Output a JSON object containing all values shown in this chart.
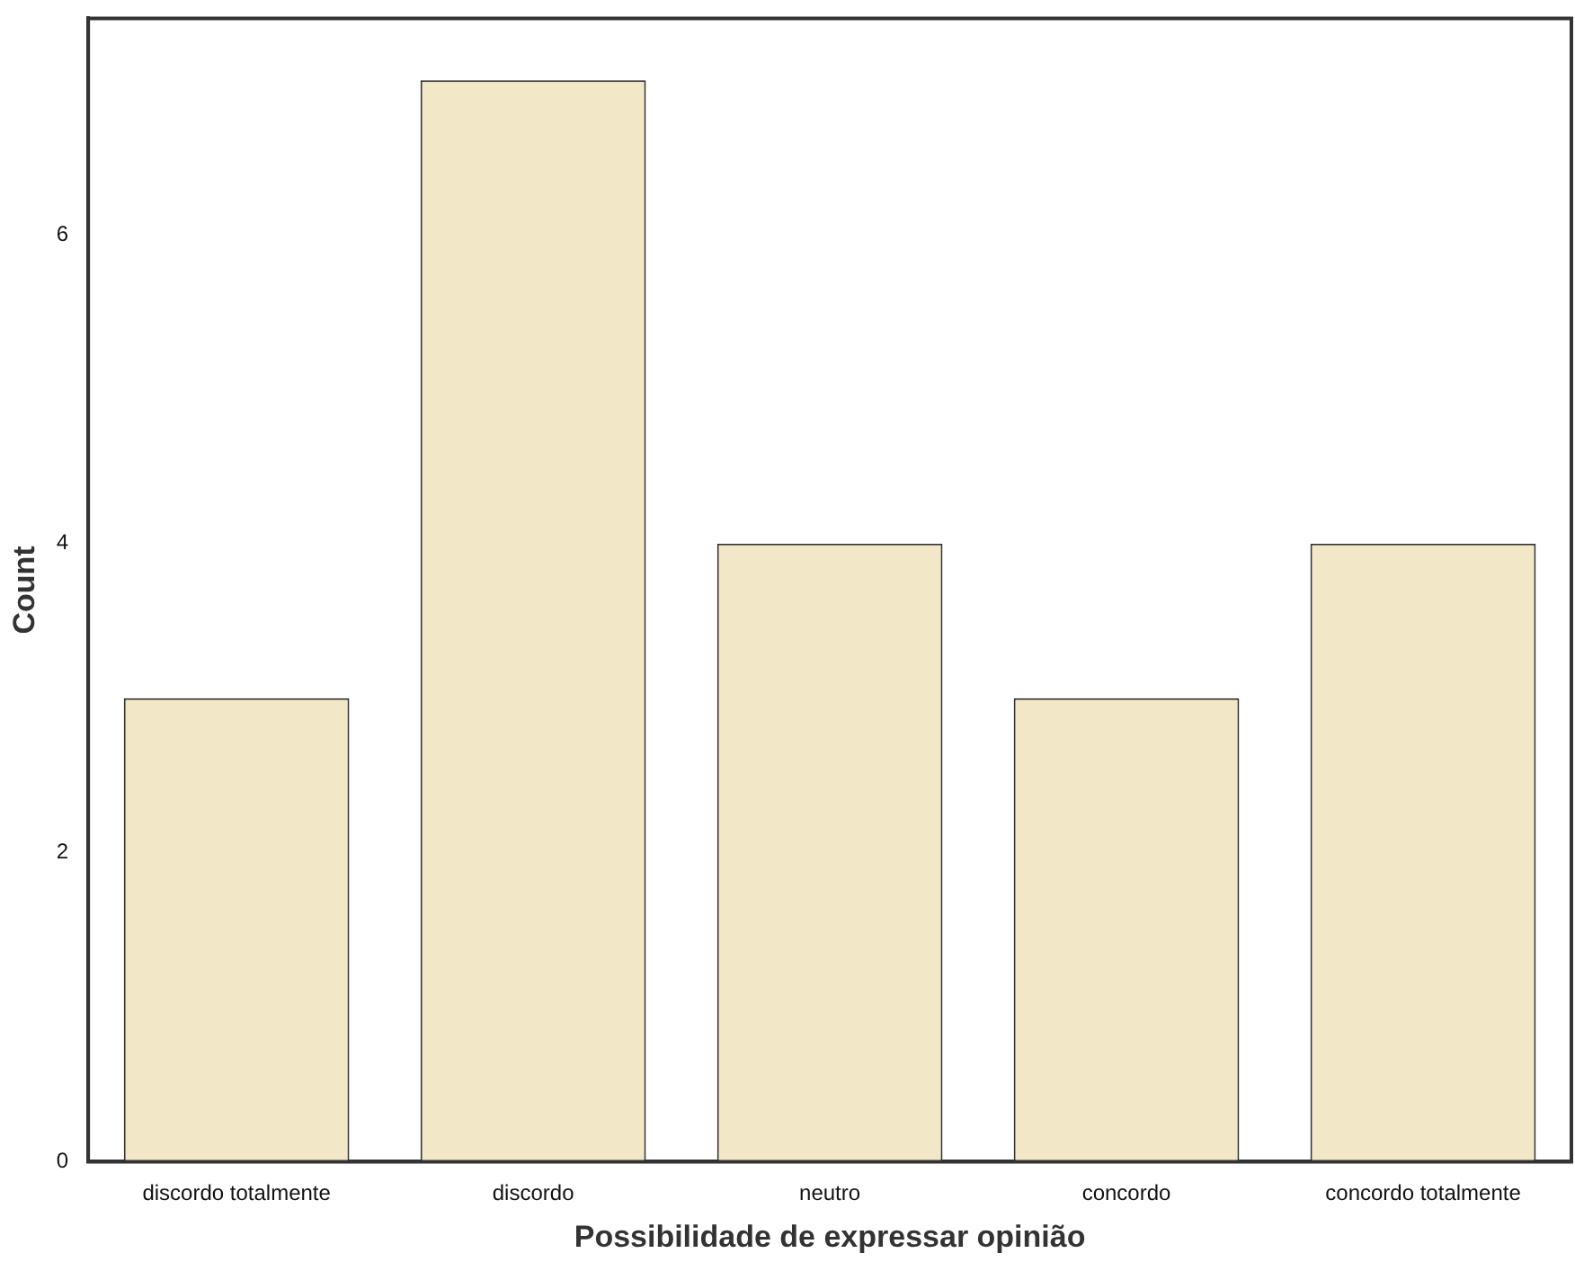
{
  "chart_data": {
    "type": "bar",
    "xlabel": "Possibilidade de expressar opinião",
    "ylabel": "Count",
    "categories": [
      "discordo totalmente",
      "discordo",
      "neutro",
      "concordo",
      "concordo totalmente"
    ],
    "values": [
      3,
      7,
      4,
      3,
      4
    ],
    "color": "#f2e7c6",
    "ylim": [
      0,
      7.4
    ],
    "yticks": [
      0,
      2,
      4,
      6
    ]
  }
}
